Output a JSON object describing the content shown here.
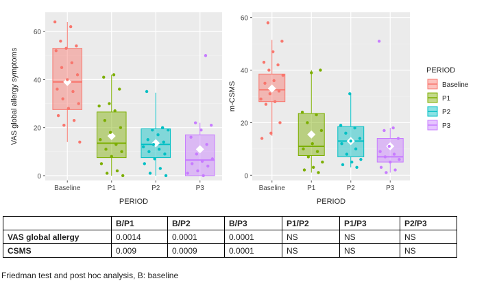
{
  "chart_data": [
    {
      "type": "box",
      "title": "",
      "xlabel": "PERIOD",
      "ylabel": "VAS global allergy symptoms",
      "categories": [
        "Baseline",
        "P1",
        "P2",
        "P3"
      ],
      "ylim": [
        -2,
        68
      ],
      "yticks": [
        0,
        20,
        40,
        60
      ],
      "boxes": [
        {
          "category": "Baseline",
          "min": 14,
          "q1": 27.5,
          "median": 39,
          "q3": 53,
          "max": 64,
          "mean": 39
        },
        {
          "category": "P1",
          "min": 0,
          "q1": 7.5,
          "median": 13.5,
          "q3": 26.5,
          "max": 42,
          "mean": 16.5
        },
        {
          "category": "P2",
          "min": 0,
          "q1": 7.5,
          "median": 13,
          "q3": 19.5,
          "max": 34.5,
          "mean": 13.5
        },
        {
          "category": "P3",
          "min": 0,
          "q1": 0,
          "median": 6.5,
          "q3": 17,
          "max": 22,
          "mean": 11
        },
        {
          "category": "P3-outlier",
          "value": 50
        }
      ],
      "points": {
        "Baseline": [
          64,
          62,
          56,
          54,
          53,
          52,
          47,
          45,
          42,
          40,
          36,
          35,
          32,
          30,
          28,
          25,
          23,
          21,
          14
        ],
        "P1": [
          42,
          41,
          36,
          30,
          29,
          27,
          23,
          20,
          18,
          15,
          13,
          11,
          10,
          8,
          5,
          2,
          1,
          0
        ],
        "P2": [
          35,
          20,
          19,
          19,
          17,
          15,
          14,
          13,
          12,
          11,
          10,
          9,
          7,
          5,
          3,
          1,
          0
        ],
        "P3": [
          50,
          22,
          21,
          19,
          16,
          13,
          9,
          7,
          6,
          5,
          4,
          2,
          1,
          0
        ]
      }
    },
    {
      "type": "box",
      "title": "",
      "xlabel": "PERIOD",
      "ylabel": "m-CSMS",
      "categories": [
        "Baseline",
        "P1",
        "P2",
        "P3"
      ],
      "ylim": [
        -2,
        62
      ],
      "yticks": [
        0,
        20,
        40,
        60
      ],
      "boxes": [
        {
          "category": "Baseline",
          "min": 15,
          "q1": 28,
          "median": 32.5,
          "q3": 38.5,
          "max": 51.5,
          "mean": 33
        },
        {
          "category": "P1",
          "min": 1,
          "q1": 7.5,
          "median": 11,
          "q3": 23.5,
          "max": 40,
          "mean": 15.5
        },
        {
          "category": "P2",
          "min": 3,
          "q1": 7,
          "median": 13,
          "q3": 18.5,
          "max": 31,
          "mean": 13
        },
        {
          "category": "P3",
          "min": 1,
          "q1": 5,
          "median": 7,
          "q3": 14,
          "max": 18,
          "mean": 11
        },
        {
          "category": "P3-outlier",
          "value": 51
        }
      ],
      "points": {
        "Baseline": [
          58,
          51,
          47,
          43,
          42,
          40,
          38,
          36,
          35,
          32,
          31,
          29,
          28,
          27,
          20,
          16,
          14
        ],
        "P1": [
          40,
          39,
          24,
          23,
          20,
          17,
          12,
          10,
          9,
          7,
          5,
          3,
          2,
          1
        ],
        "P2": [
          31,
          19,
          18,
          16,
          14,
          13,
          12,
          10,
          8,
          6,
          5,
          4,
          3
        ],
        "P3": [
          51,
          18,
          17,
          14,
          11,
          9,
          8,
          7,
          6,
          5,
          3,
          2,
          1
        ]
      }
    }
  ],
  "legend": {
    "title": "PERIOD",
    "items": [
      "Baseline",
      "P1",
      "P2",
      "P3"
    ]
  },
  "colors": {
    "Baseline": "#f8766d",
    "P1": "#7cae00",
    "P2": "#00bfc4",
    "P3": "#c77cff",
    "panel": "#ebebeb",
    "grid": "#ffffff"
  },
  "table": {
    "headers": [
      "",
      "B/P1",
      "B/P2",
      "B/P3",
      "P1/P2",
      "P1/P3",
      "P2/P3"
    ],
    "rows": [
      {
        "label": "VAS global allergy",
        "values": [
          "0.0014",
          "0.0001",
          "0.0001",
          "NS",
          "NS",
          "NS"
        ]
      },
      {
        "label": "CSMS",
        "values": [
          "0.009",
          "0.0009",
          "0.0001",
          "NS",
          "NS",
          "NS"
        ]
      }
    ]
  },
  "caption": "Friedman test and post hoc analysis, B: baseline"
}
